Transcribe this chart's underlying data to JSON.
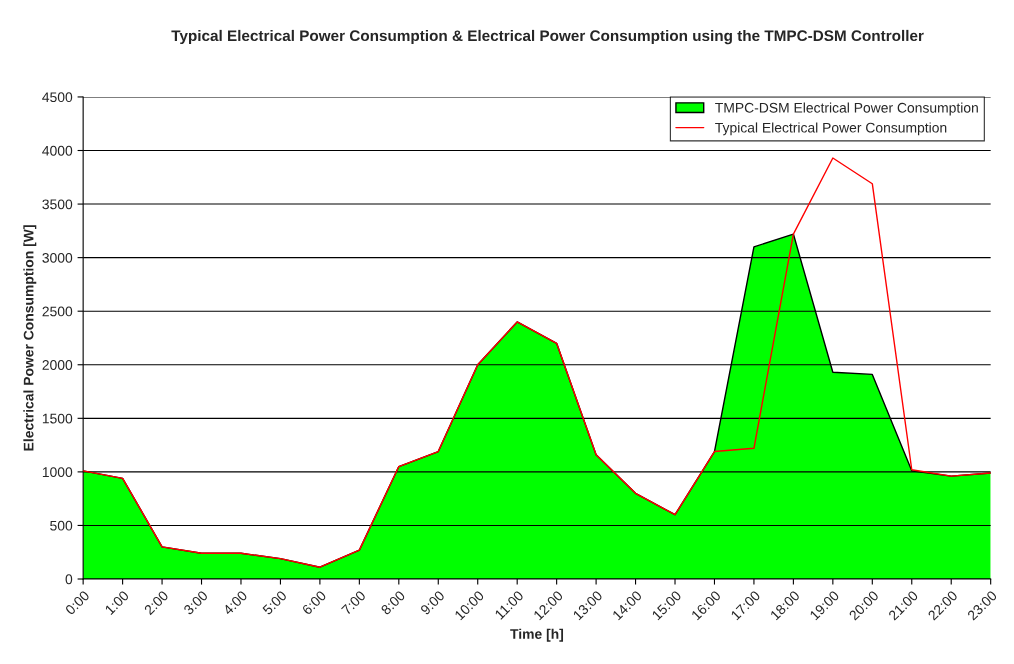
{
  "chart_data": {
    "type": "area",
    "title": "Typical Electrical Power Consumption & Electrical Power Consumption using the TMPC-DSM Controller",
    "xlabel": "Time [h]",
    "ylabel": "Electrical Power Consumption [W]",
    "categories": [
      "0:00",
      "1:00",
      "2:00",
      "3:00",
      "4:00",
      "5:00",
      "6:00",
      "7:00",
      "8:00",
      "9:00",
      "10:00",
      "11:00",
      "12:00",
      "13:00",
      "14:00",
      "15:00",
      "16:00",
      "17:00",
      "18:00",
      "19:00",
      "20:00",
      "21:00",
      "22:00",
      "23:00"
    ],
    "series": [
      {
        "name": "TMPC-DSM Electrical Power Consumption",
        "color": "#00ff00",
        "values": [
          1010,
          940,
          300,
          240,
          240,
          190,
          110,
          270,
          1050,
          1190,
          2000,
          2400,
          2200,
          1160,
          800,
          600,
          1190,
          3100,
          3220,
          1930,
          1910,
          1010,
          960,
          990
        ]
      },
      {
        "name": "Typical Electrical Power Consumption",
        "type": "line",
        "color": "#ff0000",
        "values": [
          1010,
          940,
          300,
          240,
          240,
          190,
          110,
          270,
          1050,
          1190,
          2000,
          2400,
          2200,
          1160,
          800,
          600,
          1190,
          1220,
          3220,
          3930,
          3690,
          1020,
          960,
          990
        ]
      }
    ],
    "ylim": [
      0,
      4500
    ],
    "yticks": [
      0,
      500,
      1000,
      1500,
      2000,
      2500,
      3000,
      3500,
      4000,
      4500
    ],
    "grid": "y",
    "legend": "top right"
  }
}
